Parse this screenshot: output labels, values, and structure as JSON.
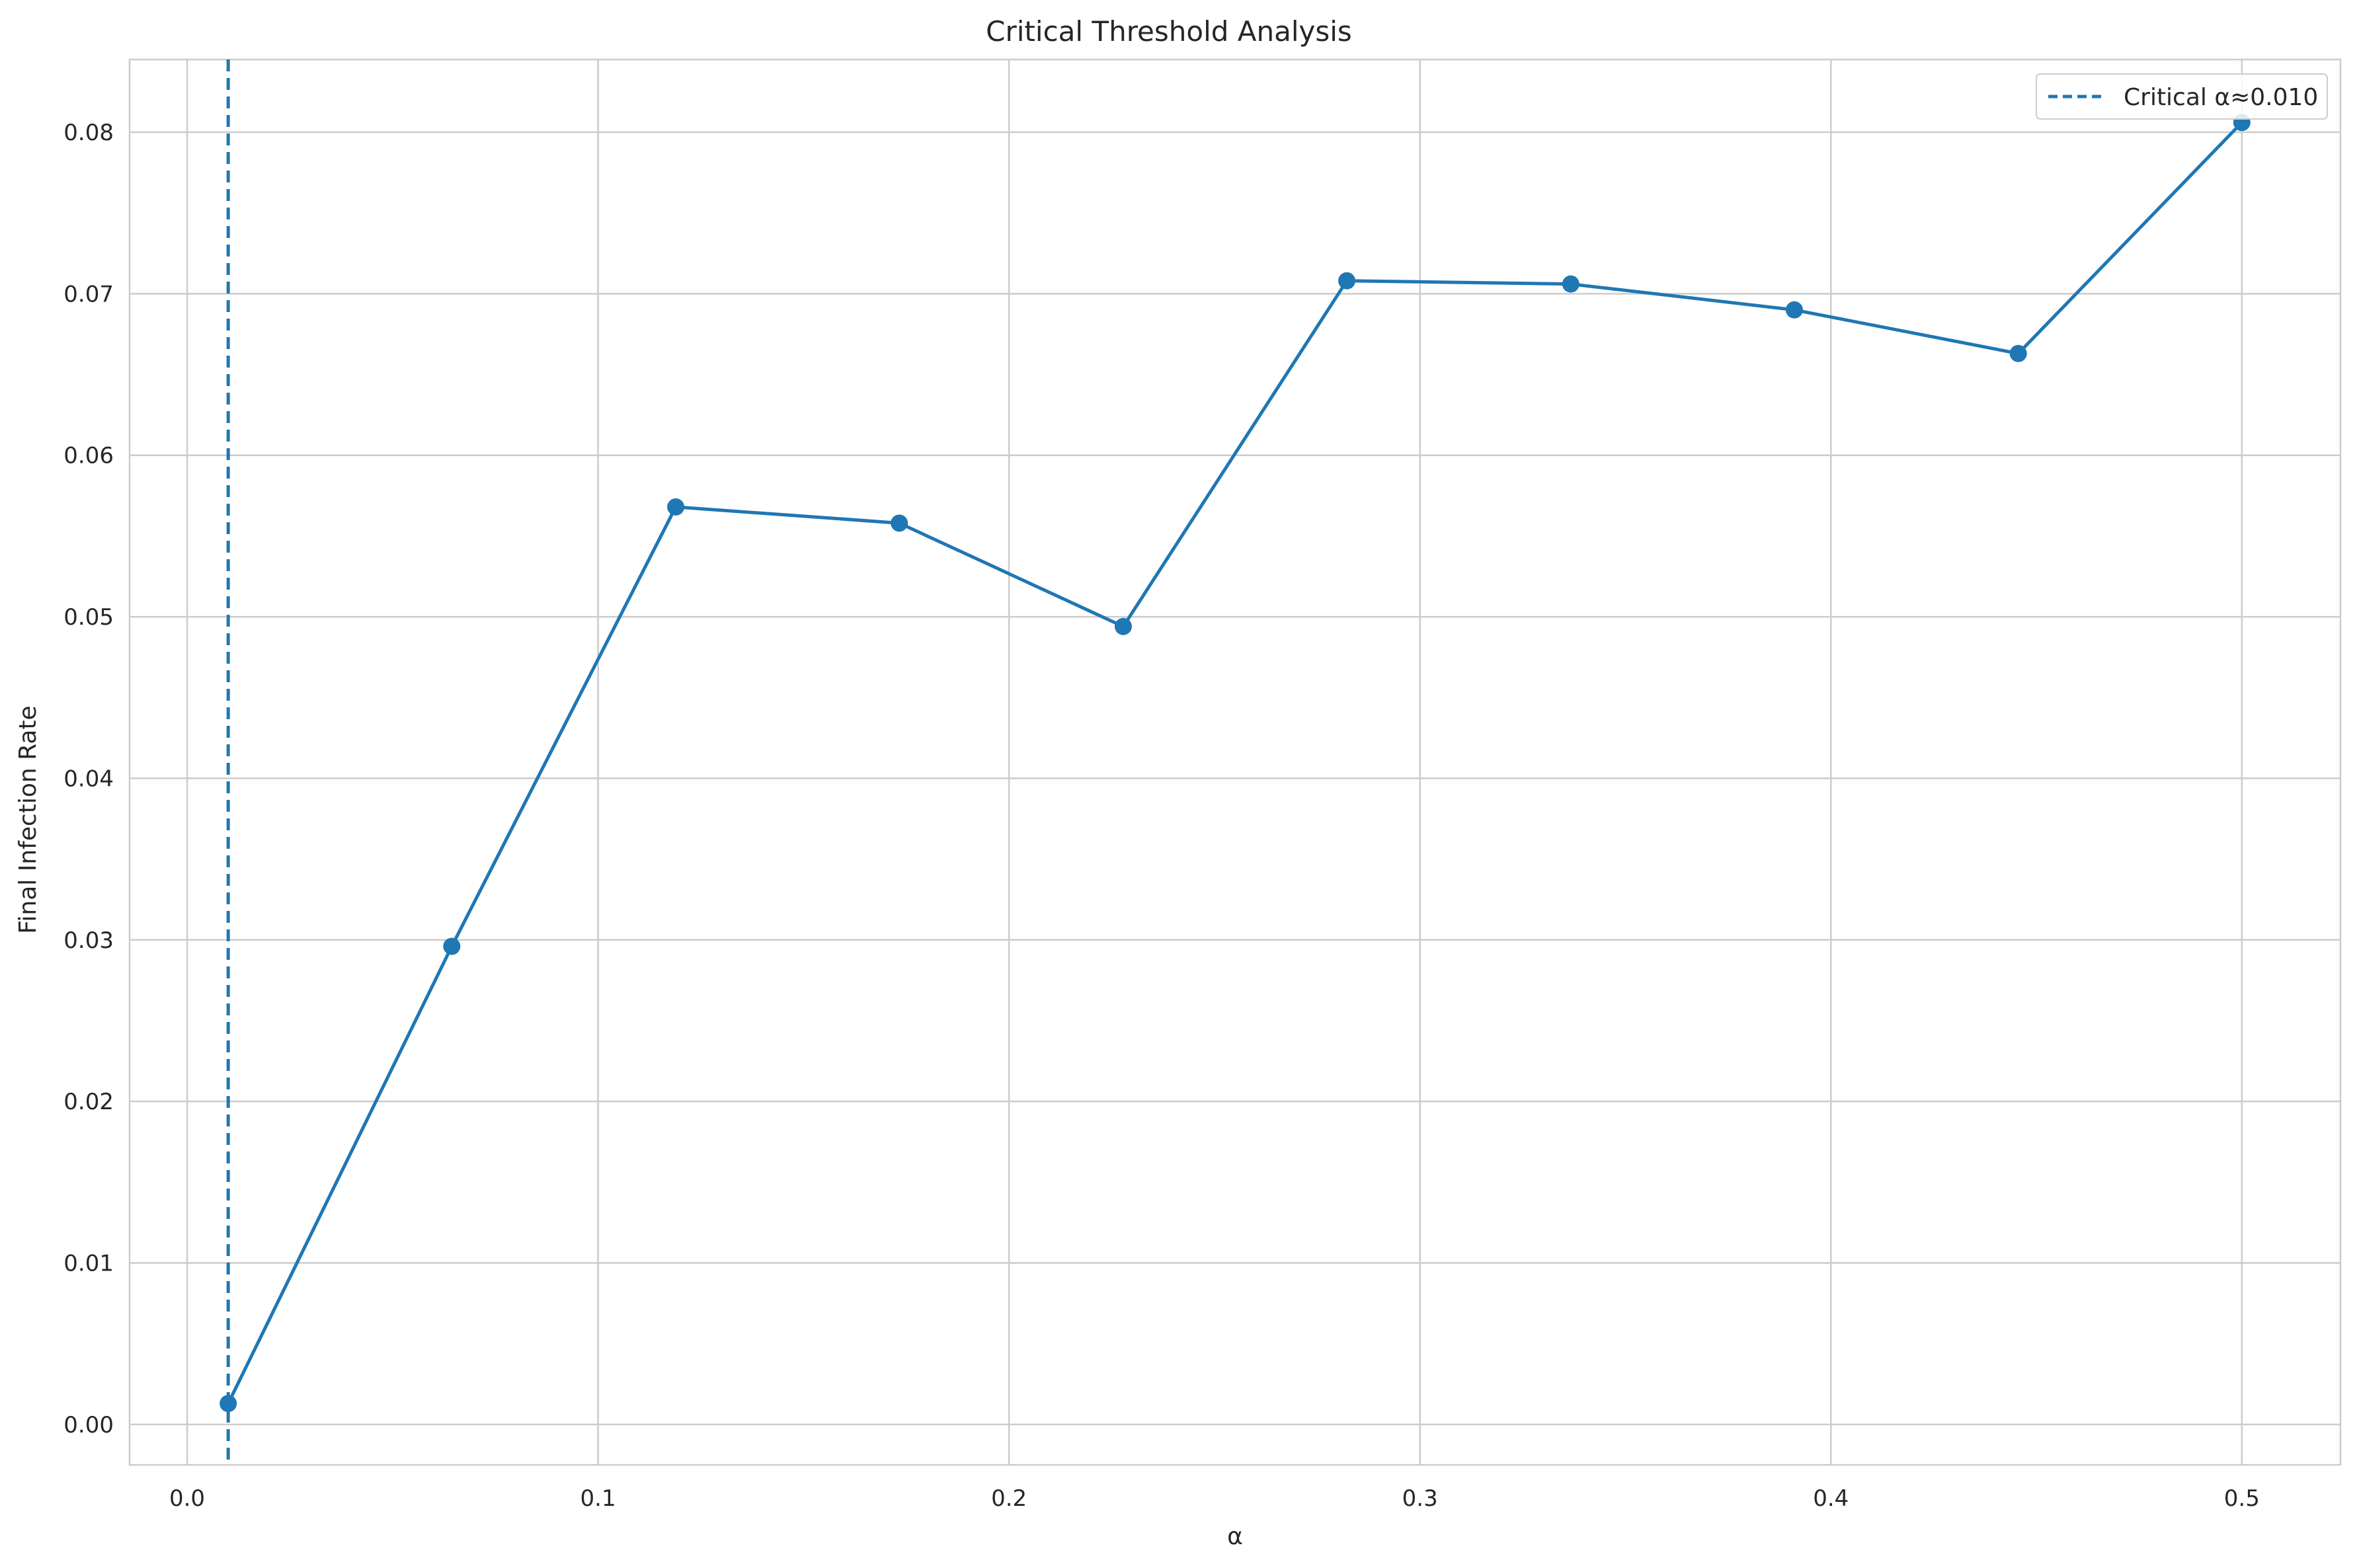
{
  "chart_data": {
    "type": "line",
    "title": "Critical Threshold Analysis",
    "xlabel": "α",
    "ylabel": "Final Infection Rate",
    "xlim": [
      -0.014,
      0.524
    ],
    "ylim": [
      -0.0025,
      0.0845
    ],
    "x_ticks": [
      0.0,
      0.1,
      0.2,
      0.3,
      0.4,
      0.5
    ],
    "x_tick_labels": [
      "0.0",
      "0.1",
      "0.2",
      "0.3",
      "0.4",
      "0.5"
    ],
    "y_ticks": [
      0.0,
      0.01,
      0.02,
      0.03,
      0.04,
      0.05,
      0.06,
      0.07,
      0.08
    ],
    "y_tick_labels": [
      "0.00",
      "0.01",
      "0.02",
      "0.03",
      "0.04",
      "0.05",
      "0.06",
      "0.07",
      "0.08"
    ],
    "grid": true,
    "legend_position": "top-right",
    "series": [
      {
        "x": [
          0.01,
          0.0644,
          0.1189,
          0.1733,
          0.2278,
          0.2822,
          0.3367,
          0.3911,
          0.4456,
          0.5
        ],
        "values": [
          0.0013,
          0.0296,
          0.0568,
          0.0558,
          0.0494,
          0.0708,
          0.0706,
          0.069,
          0.0663,
          0.0806
        ],
        "color": "#1f77b4",
        "marker": "circle"
      }
    ],
    "reference_lines": [
      {
        "orientation": "vertical",
        "x": 0.01,
        "style": "dashed",
        "color": "#1f77b4",
        "label": "Critical α≈0.010"
      }
    ]
  }
}
